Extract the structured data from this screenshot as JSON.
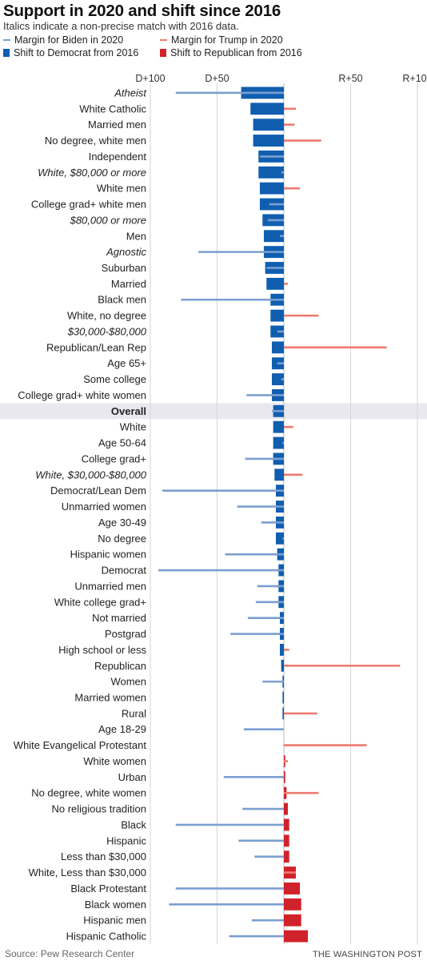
{
  "title": "Support in 2020 and shift since 2016",
  "subtitle": "Italics indicate a non-precise match with 2016 data.",
  "legend": {
    "biden_margin": "Margin for Biden in 2020",
    "trump_margin": "Margin for Trump in 2020",
    "shift_dem": "Shift to Democrat from 2016",
    "shift_rep": "Shift to Republican from 2016"
  },
  "colors": {
    "biden_line": "#7b9fd0",
    "trump_line": "#ec7a6e",
    "shift_dem": "#0f5eb0",
    "shift_rep": "#d0222b",
    "highlight": "#e8e8ee",
    "grid": "#d6d6d6"
  },
  "source": "Source: Pew Research Center",
  "credit": "THE WASHINGTON POST",
  "chart_data": {
    "type": "bar",
    "axis": {
      "ticks": [
        -100,
        -50,
        50,
        100
      ],
      "tick_labels": [
        "D+100",
        "D+50",
        "R+50",
        "R+100"
      ],
      "range": [
        -110,
        110
      ]
    },
    "highlight_category": "Overall",
    "categories": [
      {
        "label": "Atheist",
        "italic": true,
        "margin": -81,
        "shift": -32
      },
      {
        "label": "White Catholic",
        "italic": false,
        "margin": 9,
        "shift": -25
      },
      {
        "label": "Married men",
        "italic": false,
        "margin": 8,
        "shift": -23
      },
      {
        "label": "No degree, white men",
        "italic": false,
        "margin": 28,
        "shift": -23
      },
      {
        "label": "Independent",
        "italic": false,
        "margin": -18,
        "shift": -19
      },
      {
        "label": "White, $80,000 or more",
        "italic": true,
        "margin": -2,
        "shift": -19
      },
      {
        "label": "White men",
        "italic": false,
        "margin": 12,
        "shift": -18
      },
      {
        "label": "College grad+ white men",
        "italic": false,
        "margin": -11,
        "shift": -18
      },
      {
        "label": "$80,000 or more",
        "italic": true,
        "margin": -12,
        "shift": -16
      },
      {
        "label": "Men",
        "italic": false,
        "margin": -3,
        "shift": -15
      },
      {
        "label": "Agnostic",
        "italic": true,
        "margin": -64,
        "shift": -15
      },
      {
        "label": "Suburban",
        "italic": false,
        "margin": -13,
        "shift": -14
      },
      {
        "label": "Married",
        "italic": false,
        "margin": 3,
        "shift": -13
      },
      {
        "label": "Black men",
        "italic": false,
        "margin": -77,
        "shift": -10
      },
      {
        "label": "White, no degree",
        "italic": false,
        "margin": 26,
        "shift": -10
      },
      {
        "label": "$30,000-$80,000",
        "italic": true,
        "margin": -5,
        "shift": -10
      },
      {
        "label": "Republican/Lean Rep",
        "italic": false,
        "margin": 77,
        "shift": -9
      },
      {
        "label": "Age 65+",
        "italic": false,
        "margin": -5,
        "shift": -9
      },
      {
        "label": "Some college",
        "italic": false,
        "margin": -2,
        "shift": -9
      },
      {
        "label": "College grad+ white women",
        "italic": false,
        "margin": -28,
        "shift": -9
      },
      {
        "label": "Overall",
        "italic": false,
        "bold": true,
        "margin": -9,
        "shift": -8
      },
      {
        "label": "White",
        "italic": false,
        "margin": 7,
        "shift": -8
      },
      {
        "label": "Age 50-64",
        "italic": false,
        "margin": -1,
        "shift": -8
      },
      {
        "label": "College grad+",
        "italic": false,
        "margin": -29,
        "shift": -8
      },
      {
        "label": "White, $30,000-$80,000",
        "italic": true,
        "margin": 14,
        "shift": -7
      },
      {
        "label": "Democrat/Lean Dem",
        "italic": false,
        "margin": -91,
        "shift": -6
      },
      {
        "label": "Unmarried women",
        "italic": false,
        "margin": -35,
        "shift": -6
      },
      {
        "label": "Age 30-49",
        "italic": false,
        "margin": -17,
        "shift": -6
      },
      {
        "label": "No degree",
        "italic": false,
        "margin": -1,
        "shift": -6
      },
      {
        "label": "Hispanic women",
        "italic": false,
        "margin": -44,
        "shift": -5
      },
      {
        "label": "Democrat",
        "italic": false,
        "margin": -94,
        "shift": -4
      },
      {
        "label": "Unmarried men",
        "italic": false,
        "margin": -20,
        "shift": -4
      },
      {
        "label": "White college grad+",
        "italic": false,
        "margin": -21,
        "shift": -4
      },
      {
        "label": "Not married",
        "italic": false,
        "margin": -27,
        "shift": -3
      },
      {
        "label": "Postgrad",
        "italic": false,
        "margin": -40,
        "shift": -3
      },
      {
        "label": "High school or less",
        "italic": false,
        "margin": 4,
        "shift": -3
      },
      {
        "label": "Republican",
        "italic": false,
        "margin": 87,
        "shift": -2
      },
      {
        "label": "Women",
        "italic": false,
        "margin": -16,
        "shift": -1
      },
      {
        "label": "Married women",
        "italic": false,
        "margin": 0,
        "shift": -1
      },
      {
        "label": "Rural",
        "italic": false,
        "margin": 25,
        "shift": -1
      },
      {
        "label": "Age 18-29",
        "italic": false,
        "margin": -30,
        "shift": 0
      },
      {
        "label": "White Evangelical Protestant",
        "italic": false,
        "margin": 62,
        "shift": 0
      },
      {
        "label": "White women",
        "italic": false,
        "margin": 3,
        "shift": 1
      },
      {
        "label": "Urban",
        "italic": false,
        "margin": -45,
        "shift": 1
      },
      {
        "label": "No degree, white women",
        "italic": false,
        "margin": 26,
        "shift": 2
      },
      {
        "label": "No religious tradition",
        "italic": false,
        "margin": -31,
        "shift": 3
      },
      {
        "label": "Black",
        "italic": false,
        "margin": -81,
        "shift": 4
      },
      {
        "label": "Hispanic",
        "italic": false,
        "margin": -34,
        "shift": 4
      },
      {
        "label": "Less than $30,000",
        "italic": false,
        "margin": -22,
        "shift": 4
      },
      {
        "label": "White, Less than $30,000",
        "italic": false,
        "margin": 9,
        "shift": 9
      },
      {
        "label": "Black Protestant",
        "italic": false,
        "margin": -81,
        "shift": 12
      },
      {
        "label": "Black women",
        "italic": false,
        "margin": -86,
        "shift": 13
      },
      {
        "label": "Hispanic men",
        "italic": false,
        "margin": -24,
        "shift": 13
      },
      {
        "label": "Hispanic Catholic",
        "italic": false,
        "margin": -41,
        "shift": 18
      }
    ]
  }
}
